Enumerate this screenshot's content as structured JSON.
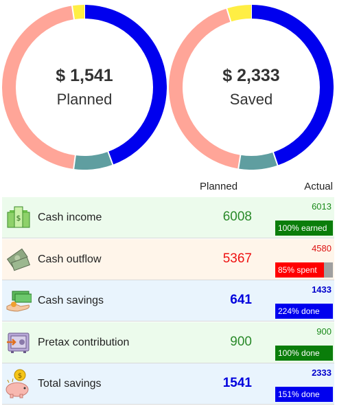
{
  "donuts": [
    {
      "amount": "$ 1,541",
      "label": "Planned",
      "segments": [
        {
          "name": "savings",
          "value": 44.4,
          "color": "#0000ee"
        },
        {
          "name": "pretax",
          "value": 7.7,
          "color": "#5f9ea0"
        },
        {
          "name": "outflow",
          "value": 45.5,
          "color": "#ffa598"
        },
        {
          "name": "income-gap",
          "value": 2.4,
          "color": "#ffee44"
        }
      ]
    },
    {
      "amount": "$ 2,333",
      "label": "Saved",
      "segments": [
        {
          "name": "savings",
          "value": 44.8,
          "color": "#0000ee"
        },
        {
          "name": "pretax",
          "value": 7.7,
          "color": "#5f9ea0"
        },
        {
          "name": "outflow",
          "value": 42.7,
          "color": "#ffa598"
        },
        {
          "name": "income-gap",
          "value": 4.8,
          "color": "#ffee44"
        }
      ]
    }
  ],
  "columns": {
    "planned": "Planned",
    "actual": "Actual"
  },
  "rows": [
    {
      "key": "income",
      "label": "Cash income",
      "planned": "6008",
      "actual": "6013",
      "status": "100% earned",
      "progress": 1.0,
      "bg": "#ecfbec",
      "planned_color": "#2a8a2a",
      "actual_color": "#1a8a1a",
      "bar_color": "#0a7d0a",
      "icon": "cash-stack-icon",
      "bold": false
    },
    {
      "key": "outflow",
      "label": "Cash outflow",
      "planned": "5367",
      "actual": "4580",
      "status": "85% spent",
      "progress": 0.85,
      "bg": "#fff5ea",
      "planned_color": "#ee1111",
      "actual_color": "#dd1111",
      "bar_color": "#ff0000",
      "icon": "flying-money-icon",
      "bold": false
    },
    {
      "key": "savings",
      "label": "Cash savings",
      "planned": "641",
      "actual": "1433",
      "status": "224% done",
      "progress": 1.0,
      "bg": "#e9f4fd",
      "planned_color": "#0000dd",
      "actual_color": "#0000cc",
      "bar_color": "#0000ee",
      "icon": "money-hand-icon",
      "bold": true
    },
    {
      "key": "pretax",
      "label": "Pretax contribution",
      "planned": "900",
      "actual": "900",
      "status": "100% done",
      "progress": 1.0,
      "bg": "#ecfbec",
      "planned_color": "#2a8a2a",
      "actual_color": "#1a8a1a",
      "bar_color": "#0a7d0a",
      "icon": "safe-icon",
      "bold": false
    },
    {
      "key": "total",
      "label": "Total savings",
      "planned": "1541",
      "actual": "2333",
      "status": "151% done",
      "progress": 1.0,
      "bg": "#e9f4fd",
      "planned_color": "#0000dd",
      "actual_color": "#0000cc",
      "bar_color": "#0000ee",
      "icon": "piggy-bank-icon",
      "bold": true
    }
  ]
}
